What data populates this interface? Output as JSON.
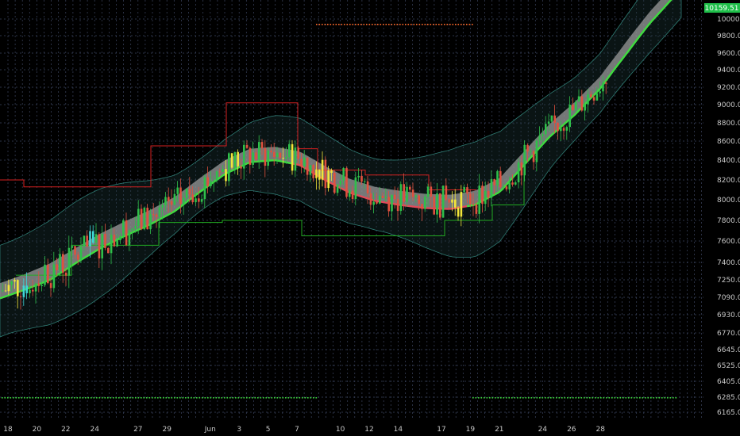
{
  "colors": {
    "background": "#000000",
    "grid": "#3c4560",
    "candle_up": "#2fbf4a",
    "candle_down": "#e0513f",
    "candle_highlight_yellow": "#f2e53a",
    "candle_highlight_cyan": "#3fd6d6",
    "ribbon_fill": "#9a9a9a",
    "ribbon_edge_up": "#3fdc3f",
    "ribbon_edge_down": "#e04a5a",
    "bollinger": "#2e7a72",
    "donchian_upper": "#d42020",
    "donchian_lower": "#22aa22",
    "dotted_upper": "#ff6a2a",
    "dotted_lower": "#3cd63c",
    "price_badge": "#1fbf4a",
    "axis_text": "#c8c8c8"
  },
  "chart_data": {
    "type": "line",
    "x_ticks": [
      "18",
      "20",
      "22",
      "24",
      "27",
      "29",
      "Jun",
      "3",
      "5",
      "7",
      "10",
      "12",
      "14",
      "17",
      "19",
      "21",
      "24",
      "26",
      "28"
    ],
    "y_ticks": [
      "10000.00",
      "9800.00",
      "9600.00",
      "9400.00",
      "9200.00",
      "9000.00",
      "8800.00",
      "8600.00",
      "8400.00",
      "8200.00",
      "8000.00",
      "7800.00",
      "7600.00",
      "7400.00",
      "7250.00",
      "7090.00",
      "6930.00",
      "6770.00",
      "6645.00",
      "6525.00",
      "6405.00",
      "6285.00",
      "6165.00"
    ],
    "current_price_label": "10159.51",
    "series": [
      {
        "values": [
          7150,
          7230,
          7320,
          7460,
          7600,
          7720,
          7830,
          7960,
          8150,
          8330,
          8450,
          8470,
          8420,
          8270,
          8140,
          8060,
          8020,
          7990,
          7980,
          8020,
          8150,
          8430,
          8720,
          8960,
          9250,
          9640,
          10020,
          10350
        ]
      }
    ]
  }
}
